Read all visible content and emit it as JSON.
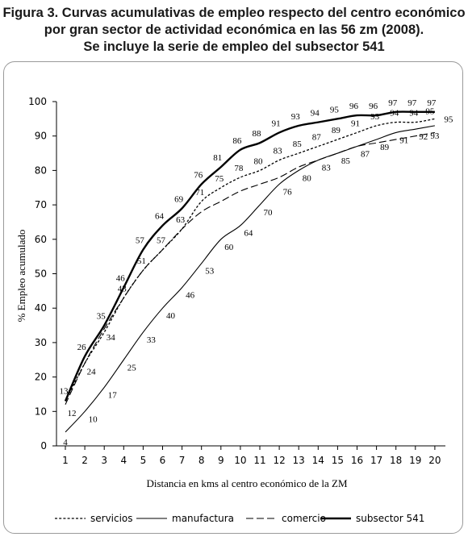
{
  "chart_data": {
    "type": "line",
    "title": [
      "Figura 3. Curvas acumulativas de empleo respecto del centro económico",
      "por gran sector de actividad económica en las 56 zm (2008).",
      "Se incluye la serie de empleo del subsector 541"
    ],
    "xlabel": "Distancia en kms al centro económico de la ZM",
    "ylabel": "% Empleo acumulado",
    "x": [
      1,
      2,
      3,
      4,
      5,
      6,
      7,
      8,
      9,
      10,
      11,
      12,
      13,
      14,
      15,
      16,
      17,
      18,
      19,
      20
    ],
    "xticks": [
      "1",
      "2",
      "3",
      "4",
      "5",
      "6",
      "7",
      "8",
      "9",
      "10",
      "11",
      "12",
      "13",
      "14",
      "15",
      "16",
      "17",
      "18",
      "19",
      "20"
    ],
    "yticks": [
      "0",
      "10",
      "20",
      "30",
      "40",
      "50",
      "60",
      "70",
      "80",
      "90",
      "100"
    ],
    "ylim": [
      0,
      100
    ],
    "grid": false,
    "legend_position": "bottom",
    "series": [
      {
        "name": "servicios",
        "style": "dotted",
        "values": [
          13,
          24,
          33,
          43,
          51,
          57,
          63,
          71,
          75,
          78,
          80,
          83,
          85,
          87,
          89,
          91,
          93,
          94,
          94,
          95
        ],
        "labels": [
          "",
          "",
          "",
          "43",
          "51",
          "57",
          "63",
          "71",
          "75",
          "78",
          "80",
          "83",
          "85",
          "87",
          "89",
          "91",
          "93",
          "94",
          "94",
          "95"
        ]
      },
      {
        "name": "manufactura",
        "style": "solid",
        "values": [
          4,
          10,
          17,
          25,
          33,
          40,
          46,
          53,
          60,
          64,
          70,
          76,
          80,
          83,
          85,
          87,
          89,
          91,
          92,
          93
        ],
        "labels": [
          "4",
          "10",
          "17",
          "25",
          "33",
          "40",
          "46",
          "53",
          "60",
          "64",
          "70",
          "76",
          "80",
          "83",
          "85",
          "87",
          "89",
          "91",
          "92",
          "93"
        ]
      },
      {
        "name": "comercio",
        "style": "dashed",
        "values": [
          12,
          24,
          34,
          43,
          51,
          57,
          63,
          68,
          71,
          74,
          76,
          78,
          81,
          83,
          85,
          87,
          88,
          89,
          90,
          91
        ],
        "labels": [
          "12",
          "24",
          "34",
          "",
          "",
          "",
          "",
          "",
          "",
          "",
          "",
          "",
          "",
          "",
          "",
          "",
          "",
          "",
          "",
          ""
        ]
      },
      {
        "name": "subsector 541",
        "style": "bold",
        "values": [
          13,
          26,
          35,
          46,
          57,
          64,
          69,
          76,
          81,
          86,
          88,
          91,
          93,
          94,
          95,
          96,
          96,
          97,
          97,
          97
        ],
        "labels": [
          "13",
          "26",
          "35",
          "46",
          "57",
          "64",
          "69",
          "76",
          "81",
          "86",
          "88",
          "91",
          "93",
          "94",
          "95",
          "96",
          "96",
          "97",
          "97",
          "97"
        ]
      }
    ]
  }
}
